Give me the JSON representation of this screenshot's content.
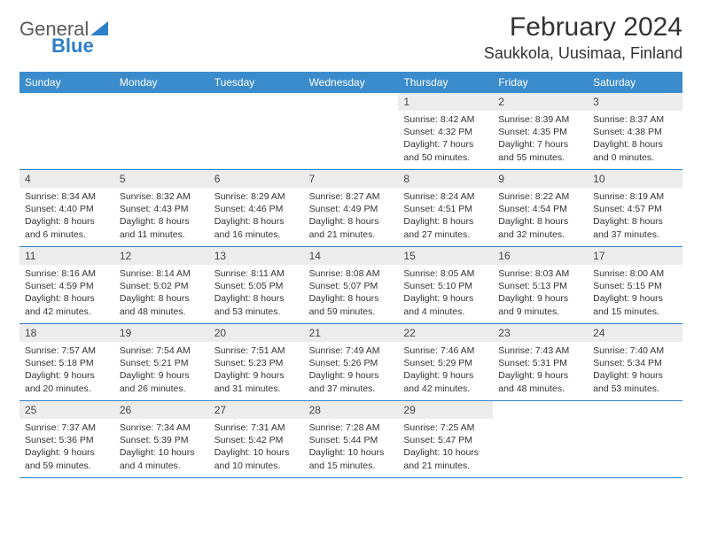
{
  "logo": {
    "text1": "General",
    "text2": "Blue"
  },
  "title": "February 2024",
  "location": "Saukkola, Uusimaa, Finland",
  "theme": {
    "header_bg": "#3b8ccc",
    "header_text": "#ffffff",
    "daynum_bg": "#ececec",
    "text_color": "#333333",
    "rule_color": "#2d7fc7",
    "logo_gray": "#5a5a5a",
    "logo_blue": "#2d7fc7",
    "page_bg": "#ffffff"
  },
  "dow": [
    "Sunday",
    "Monday",
    "Tuesday",
    "Wednesday",
    "Thursday",
    "Friday",
    "Saturday"
  ],
  "weeks": [
    [
      null,
      null,
      null,
      null,
      {
        "n": "1",
        "sunrise": "Sunrise: 8:42 AM",
        "sunset": "Sunset: 4:32 PM",
        "day1": "Daylight: 7 hours",
        "day2": "and 50 minutes."
      },
      {
        "n": "2",
        "sunrise": "Sunrise: 8:39 AM",
        "sunset": "Sunset: 4:35 PM",
        "day1": "Daylight: 7 hours",
        "day2": "and 55 minutes."
      },
      {
        "n": "3",
        "sunrise": "Sunrise: 8:37 AM",
        "sunset": "Sunset: 4:38 PM",
        "day1": "Daylight: 8 hours",
        "day2": "and 0 minutes."
      }
    ],
    [
      {
        "n": "4",
        "sunrise": "Sunrise: 8:34 AM",
        "sunset": "Sunset: 4:40 PM",
        "day1": "Daylight: 8 hours",
        "day2": "and 6 minutes."
      },
      {
        "n": "5",
        "sunrise": "Sunrise: 8:32 AM",
        "sunset": "Sunset: 4:43 PM",
        "day1": "Daylight: 8 hours",
        "day2": "and 11 minutes."
      },
      {
        "n": "6",
        "sunrise": "Sunrise: 8:29 AM",
        "sunset": "Sunset: 4:46 PM",
        "day1": "Daylight: 8 hours",
        "day2": "and 16 minutes."
      },
      {
        "n": "7",
        "sunrise": "Sunrise: 8:27 AM",
        "sunset": "Sunset: 4:49 PM",
        "day1": "Daylight: 8 hours",
        "day2": "and 21 minutes."
      },
      {
        "n": "8",
        "sunrise": "Sunrise: 8:24 AM",
        "sunset": "Sunset: 4:51 PM",
        "day1": "Daylight: 8 hours",
        "day2": "and 27 minutes."
      },
      {
        "n": "9",
        "sunrise": "Sunrise: 8:22 AM",
        "sunset": "Sunset: 4:54 PM",
        "day1": "Daylight: 8 hours",
        "day2": "and 32 minutes."
      },
      {
        "n": "10",
        "sunrise": "Sunrise: 8:19 AM",
        "sunset": "Sunset: 4:57 PM",
        "day1": "Daylight: 8 hours",
        "day2": "and 37 minutes."
      }
    ],
    [
      {
        "n": "11",
        "sunrise": "Sunrise: 8:16 AM",
        "sunset": "Sunset: 4:59 PM",
        "day1": "Daylight: 8 hours",
        "day2": "and 42 minutes."
      },
      {
        "n": "12",
        "sunrise": "Sunrise: 8:14 AM",
        "sunset": "Sunset: 5:02 PM",
        "day1": "Daylight: 8 hours",
        "day2": "and 48 minutes."
      },
      {
        "n": "13",
        "sunrise": "Sunrise: 8:11 AM",
        "sunset": "Sunset: 5:05 PM",
        "day1": "Daylight: 8 hours",
        "day2": "and 53 minutes."
      },
      {
        "n": "14",
        "sunrise": "Sunrise: 8:08 AM",
        "sunset": "Sunset: 5:07 PM",
        "day1": "Daylight: 8 hours",
        "day2": "and 59 minutes."
      },
      {
        "n": "15",
        "sunrise": "Sunrise: 8:05 AM",
        "sunset": "Sunset: 5:10 PM",
        "day1": "Daylight: 9 hours",
        "day2": "and 4 minutes."
      },
      {
        "n": "16",
        "sunrise": "Sunrise: 8:03 AM",
        "sunset": "Sunset: 5:13 PM",
        "day1": "Daylight: 9 hours",
        "day2": "and 9 minutes."
      },
      {
        "n": "17",
        "sunrise": "Sunrise: 8:00 AM",
        "sunset": "Sunset: 5:15 PM",
        "day1": "Daylight: 9 hours",
        "day2": "and 15 minutes."
      }
    ],
    [
      {
        "n": "18",
        "sunrise": "Sunrise: 7:57 AM",
        "sunset": "Sunset: 5:18 PM",
        "day1": "Daylight: 9 hours",
        "day2": "and 20 minutes."
      },
      {
        "n": "19",
        "sunrise": "Sunrise: 7:54 AM",
        "sunset": "Sunset: 5:21 PM",
        "day1": "Daylight: 9 hours",
        "day2": "and 26 minutes."
      },
      {
        "n": "20",
        "sunrise": "Sunrise: 7:51 AM",
        "sunset": "Sunset: 5:23 PM",
        "day1": "Daylight: 9 hours",
        "day2": "and 31 minutes."
      },
      {
        "n": "21",
        "sunrise": "Sunrise: 7:49 AM",
        "sunset": "Sunset: 5:26 PM",
        "day1": "Daylight: 9 hours",
        "day2": "and 37 minutes."
      },
      {
        "n": "22",
        "sunrise": "Sunrise: 7:46 AM",
        "sunset": "Sunset: 5:29 PM",
        "day1": "Daylight: 9 hours",
        "day2": "and 42 minutes."
      },
      {
        "n": "23",
        "sunrise": "Sunrise: 7:43 AM",
        "sunset": "Sunset: 5:31 PM",
        "day1": "Daylight: 9 hours",
        "day2": "and 48 minutes."
      },
      {
        "n": "24",
        "sunrise": "Sunrise: 7:40 AM",
        "sunset": "Sunset: 5:34 PM",
        "day1": "Daylight: 9 hours",
        "day2": "and 53 minutes."
      }
    ],
    [
      {
        "n": "25",
        "sunrise": "Sunrise: 7:37 AM",
        "sunset": "Sunset: 5:36 PM",
        "day1": "Daylight: 9 hours",
        "day2": "and 59 minutes."
      },
      {
        "n": "26",
        "sunrise": "Sunrise: 7:34 AM",
        "sunset": "Sunset: 5:39 PM",
        "day1": "Daylight: 10 hours",
        "day2": "and 4 minutes."
      },
      {
        "n": "27",
        "sunrise": "Sunrise: 7:31 AM",
        "sunset": "Sunset: 5:42 PM",
        "day1": "Daylight: 10 hours",
        "day2": "and 10 minutes."
      },
      {
        "n": "28",
        "sunrise": "Sunrise: 7:28 AM",
        "sunset": "Sunset: 5:44 PM",
        "day1": "Daylight: 10 hours",
        "day2": "and 15 minutes."
      },
      {
        "n": "29",
        "sunrise": "Sunrise: 7:25 AM",
        "sunset": "Sunset: 5:47 PM",
        "day1": "Daylight: 10 hours",
        "day2": "and 21 minutes."
      },
      null,
      null
    ]
  ]
}
